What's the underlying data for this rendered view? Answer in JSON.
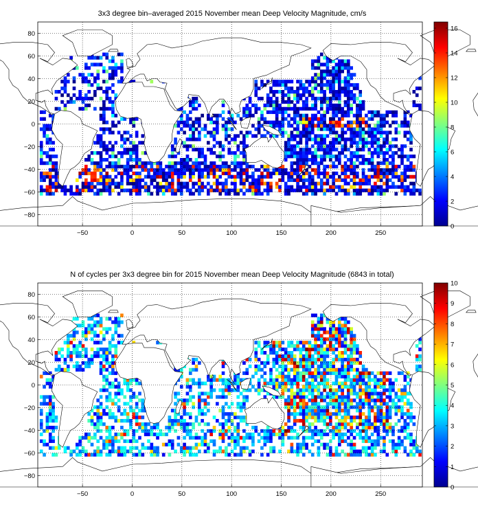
{
  "chart_data": [
    {
      "type": "heatmap",
      "subtype": "gridded world map",
      "title": "3x3 degree bin–averaged 2015 November mean Deep Velocity Magnitude, cm/s",
      "xlabel": "",
      "ylabel": "",
      "xlim": [
        -95,
        292
      ],
      "ylim": [
        -90,
        90
      ],
      "xticks": [
        -50,
        0,
        50,
        100,
        150,
        200,
        250
      ],
      "yticks": [
        -80,
        -60,
        -40,
        -20,
        0,
        20,
        40,
        60,
        80
      ],
      "grid": true,
      "bin_size_deg": 3,
      "colormap": "jet",
      "colorbar": {
        "min": 0,
        "max": 16.5,
        "ticks": [
          0,
          2,
          4,
          6,
          8,
          10,
          12,
          14,
          16
        ]
      },
      "value_distribution": "mostly 0–4 (blue); highest values 12–16 (red) along the Southern Ocean 40°S–60°S and in the Argentine Basin",
      "hotspots": [
        {
          "lon": -50,
          "lat": -48,
          "value": 16
        },
        {
          "lon": -40,
          "lat": -55,
          "value": 15
        },
        {
          "lon": 30,
          "lat": -40,
          "value": 15
        },
        {
          "lon": 60,
          "lat": -45,
          "value": 12
        },
        {
          "lon": 100,
          "lat": -50,
          "value": 13
        },
        {
          "lon": 145,
          "lat": -52,
          "value": 14
        },
        {
          "lon": 210,
          "lat": -55,
          "value": 15
        },
        {
          "lon": 250,
          "lat": -58,
          "value": 13
        },
        {
          "lon": 200,
          "lat": 0,
          "value": 14
        }
      ]
    },
    {
      "type": "heatmap",
      "subtype": "gridded world map",
      "title": "N of cycles per 3x3 degree bin for 2015 November mean Deep Velocity Magnitude (6843 in total)",
      "xlabel": "",
      "ylabel": "",
      "total_cycles": 6843,
      "xlim": [
        -95,
        292
      ],
      "ylim": [
        -90,
        90
      ],
      "xticks": [
        -50,
        0,
        50,
        100,
        150,
        200,
        250
      ],
      "yticks": [
        -80,
        -60,
        -40,
        -20,
        0,
        20,
        40,
        60,
        80
      ],
      "grid": true,
      "bin_size_deg": 3,
      "colormap": "jet",
      "colorbar": {
        "min": 0,
        "max": 10,
        "ticks": [
          0,
          1,
          2,
          3,
          4,
          5,
          6,
          7,
          8,
          9,
          10
        ]
      },
      "value_distribution": "mostly 1–4 cycles per bin; densest (6–10) in the western and central Pacific and Kuroshio region"
    }
  ],
  "panels": [
    {
      "title": "3x3 degree bin–averaged 2015 November mean Deep Velocity Magnitude, cm/s",
      "xticks": [
        "−50",
        "0",
        "50",
        "100",
        "150",
        "200",
        "250"
      ],
      "yticks": [
        "80",
        "60",
        "40",
        "20",
        "0",
        "−20",
        "−40",
        "−60",
        "−80"
      ],
      "cbticks": [
        "0",
        "2",
        "4",
        "6",
        "8",
        "10",
        "12",
        "14",
        "16"
      ]
    },
    {
      "title": "N of cycles per 3x3 degree bin for 2015 November mean Deep Velocity Magnitude (6843 in total)",
      "xticks": [
        "−50",
        "0",
        "50",
        "100",
        "150",
        "200",
        "250"
      ],
      "yticks": [
        "80",
        "60",
        "40",
        "20",
        "0",
        "−20",
        "−40",
        "−60",
        "−80"
      ],
      "cbticks": [
        "0",
        "1",
        "2",
        "3",
        "4",
        "5",
        "6",
        "7",
        "8",
        "9",
        "10"
      ]
    }
  ]
}
